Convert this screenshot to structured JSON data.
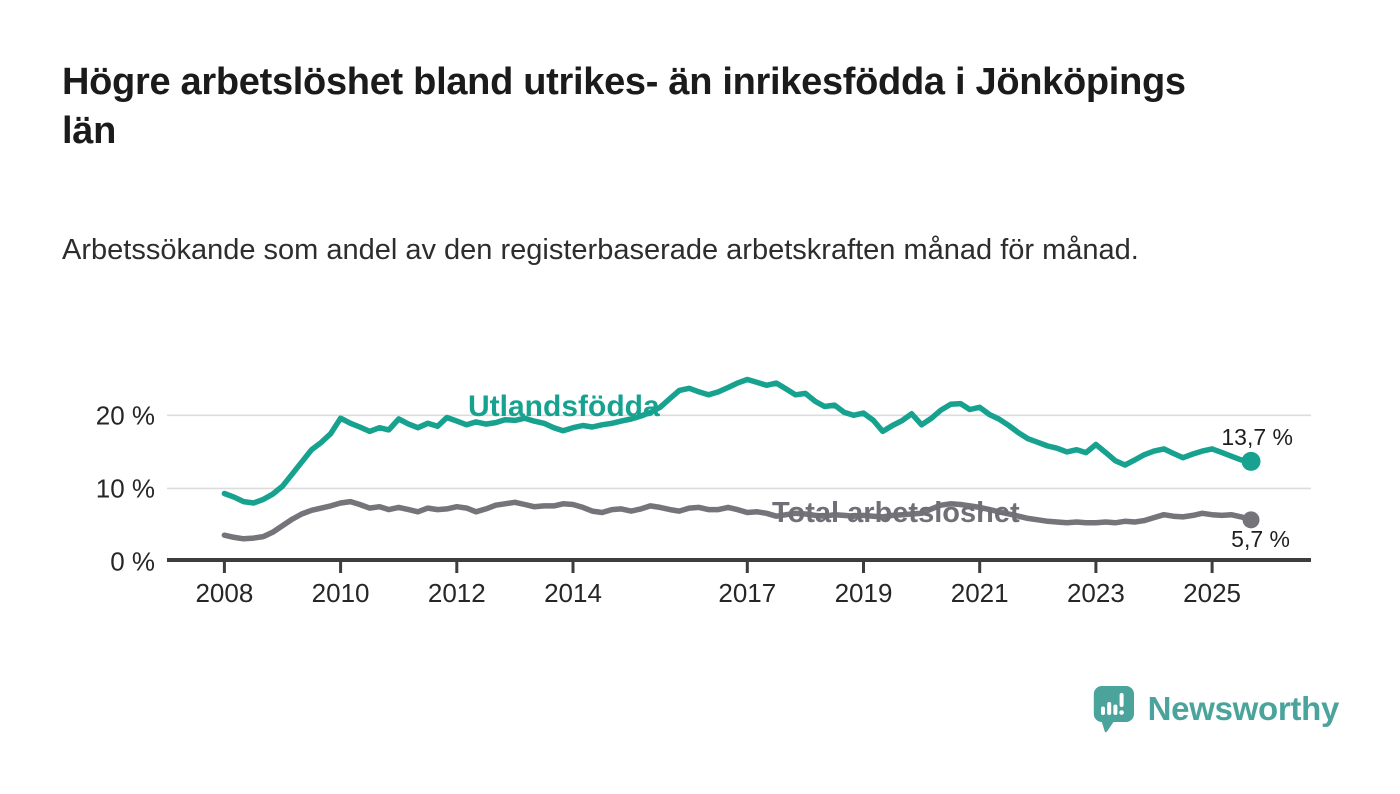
{
  "chart_data": {
    "type": "line",
    "title": "Högre arbetslöshet bland utrikes- än inrikesfödda i Jönköpings län",
    "subtitle": "Arbetssökande som andel av den registerbaserade arbetskraften månad för månad.",
    "unit": "%",
    "grid": "horizontal-only",
    "legend_position": "inline-labels-on-lines",
    "x_axis": {
      "min": 2008,
      "max": 2025.75,
      "ticks": [
        {
          "year": 2008,
          "label": "2008"
        },
        {
          "year": 2010,
          "label": "2010"
        },
        {
          "year": 2012,
          "label": "2012"
        },
        {
          "year": 2014,
          "label": "2014"
        },
        {
          "year": 2017,
          "label": "2017"
        },
        {
          "year": 2019,
          "label": "2019"
        },
        {
          "year": 2021,
          "label": "2021"
        },
        {
          "year": 2023,
          "label": "2023"
        },
        {
          "year": 2025,
          "label": "2025"
        }
      ]
    },
    "y_axis": {
      "min": 0,
      "max": 25,
      "ticks": [
        {
          "value": 0,
          "label": "0 %"
        },
        {
          "value": 10,
          "label": "10 %"
        },
        {
          "value": 20,
          "label": "20 %"
        }
      ],
      "gridlines": [
        10,
        20
      ]
    },
    "series": [
      {
        "name": "Utlandsfödda",
        "color": "#17a28f",
        "end_value": 13.7,
        "end_value_label": "13,7 %",
        "points": [
          [
            2008.0,
            9.3
          ],
          [
            2008.17,
            8.8
          ],
          [
            2008.33,
            8.2
          ],
          [
            2008.5,
            8.0
          ],
          [
            2008.67,
            8.5
          ],
          [
            2008.83,
            9.2
          ],
          [
            2009.0,
            10.3
          ],
          [
            2009.17,
            12.0
          ],
          [
            2009.33,
            13.6
          ],
          [
            2009.5,
            15.3
          ],
          [
            2009.67,
            16.3
          ],
          [
            2009.83,
            17.5
          ],
          [
            2010.0,
            19.6
          ],
          [
            2010.17,
            18.9
          ],
          [
            2010.33,
            18.4
          ],
          [
            2010.5,
            17.8
          ],
          [
            2010.67,
            18.3
          ],
          [
            2010.83,
            18.0
          ],
          [
            2011.0,
            19.5
          ],
          [
            2011.17,
            18.8
          ],
          [
            2011.33,
            18.3
          ],
          [
            2011.5,
            18.9
          ],
          [
            2011.67,
            18.5
          ],
          [
            2011.83,
            19.7
          ],
          [
            2012.0,
            19.2
          ],
          [
            2012.17,
            18.7
          ],
          [
            2012.33,
            19.1
          ],
          [
            2012.5,
            18.8
          ],
          [
            2012.67,
            19.0
          ],
          [
            2012.83,
            19.4
          ],
          [
            2013.0,
            19.3
          ],
          [
            2013.17,
            19.6
          ],
          [
            2013.33,
            19.2
          ],
          [
            2013.5,
            18.9
          ],
          [
            2013.67,
            18.3
          ],
          [
            2013.83,
            17.9
          ],
          [
            2014.0,
            18.3
          ],
          [
            2014.17,
            18.6
          ],
          [
            2014.33,
            18.4
          ],
          [
            2014.5,
            18.7
          ],
          [
            2014.67,
            18.9
          ],
          [
            2014.83,
            19.2
          ],
          [
            2015.0,
            19.5
          ],
          [
            2015.17,
            19.9
          ],
          [
            2015.33,
            20.4
          ],
          [
            2015.5,
            21.1
          ],
          [
            2015.67,
            22.3
          ],
          [
            2015.83,
            23.4
          ],
          [
            2016.0,
            23.7
          ],
          [
            2016.17,
            23.2
          ],
          [
            2016.33,
            22.8
          ],
          [
            2016.5,
            23.2
          ],
          [
            2016.67,
            23.8
          ],
          [
            2016.83,
            24.4
          ],
          [
            2017.0,
            24.9
          ],
          [
            2017.17,
            24.5
          ],
          [
            2017.33,
            24.1
          ],
          [
            2017.5,
            24.4
          ],
          [
            2017.67,
            23.6
          ],
          [
            2017.83,
            22.8
          ],
          [
            2018.0,
            23.0
          ],
          [
            2018.17,
            21.9
          ],
          [
            2018.33,
            21.2
          ],
          [
            2018.5,
            21.4
          ],
          [
            2018.67,
            20.4
          ],
          [
            2018.83,
            20.0
          ],
          [
            2019.0,
            20.3
          ],
          [
            2019.17,
            19.3
          ],
          [
            2019.33,
            17.8
          ],
          [
            2019.5,
            18.6
          ],
          [
            2019.67,
            19.3
          ],
          [
            2019.83,
            20.2
          ],
          [
            2020.0,
            18.7
          ],
          [
            2020.17,
            19.6
          ],
          [
            2020.33,
            20.7
          ],
          [
            2020.5,
            21.5
          ],
          [
            2020.67,
            21.6
          ],
          [
            2020.83,
            20.8
          ],
          [
            2021.0,
            21.1
          ],
          [
            2021.17,
            20.1
          ],
          [
            2021.33,
            19.5
          ],
          [
            2021.5,
            18.6
          ],
          [
            2021.67,
            17.6
          ],
          [
            2021.83,
            16.8
          ],
          [
            2022.0,
            16.3
          ],
          [
            2022.17,
            15.8
          ],
          [
            2022.33,
            15.5
          ],
          [
            2022.5,
            15.0
          ],
          [
            2022.67,
            15.3
          ],
          [
            2022.83,
            14.9
          ],
          [
            2023.0,
            16.0
          ],
          [
            2023.17,
            14.9
          ],
          [
            2023.33,
            13.8
          ],
          [
            2023.5,
            13.2
          ],
          [
            2023.67,
            13.9
          ],
          [
            2023.83,
            14.6
          ],
          [
            2024.0,
            15.1
          ],
          [
            2024.17,
            15.4
          ],
          [
            2024.33,
            14.8
          ],
          [
            2024.5,
            14.2
          ],
          [
            2024.67,
            14.7
          ],
          [
            2024.83,
            15.1
          ],
          [
            2025.0,
            15.4
          ],
          [
            2025.17,
            14.9
          ],
          [
            2025.33,
            14.4
          ],
          [
            2025.5,
            13.9
          ],
          [
            2025.67,
            13.7
          ]
        ]
      },
      {
        "name": "Total arbetslöshet",
        "color": "#74747a",
        "end_value": 5.7,
        "end_value_label": "5,7 %",
        "points": [
          [
            2008.0,
            3.6
          ],
          [
            2008.17,
            3.3
          ],
          [
            2008.33,
            3.1
          ],
          [
            2008.5,
            3.2
          ],
          [
            2008.67,
            3.4
          ],
          [
            2008.83,
            4.0
          ],
          [
            2009.0,
            4.9
          ],
          [
            2009.17,
            5.8
          ],
          [
            2009.33,
            6.5
          ],
          [
            2009.5,
            7.0
          ],
          [
            2009.67,
            7.3
          ],
          [
            2009.83,
            7.6
          ],
          [
            2010.0,
            8.0
          ],
          [
            2010.17,
            8.2
          ],
          [
            2010.33,
            7.8
          ],
          [
            2010.5,
            7.3
          ],
          [
            2010.67,
            7.5
          ],
          [
            2010.83,
            7.1
          ],
          [
            2011.0,
            7.4
          ],
          [
            2011.17,
            7.1
          ],
          [
            2011.33,
            6.8
          ],
          [
            2011.5,
            7.3
          ],
          [
            2011.67,
            7.1
          ],
          [
            2011.83,
            7.2
          ],
          [
            2012.0,
            7.5
          ],
          [
            2012.17,
            7.3
          ],
          [
            2012.33,
            6.8
          ],
          [
            2012.5,
            7.2
          ],
          [
            2012.67,
            7.7
          ],
          [
            2012.83,
            7.9
          ],
          [
            2013.0,
            8.1
          ],
          [
            2013.17,
            7.8
          ],
          [
            2013.33,
            7.5
          ],
          [
            2013.5,
            7.6
          ],
          [
            2013.67,
            7.6
          ],
          [
            2013.83,
            7.9
          ],
          [
            2014.0,
            7.8
          ],
          [
            2014.17,
            7.4
          ],
          [
            2014.33,
            6.9
          ],
          [
            2014.5,
            6.7
          ],
          [
            2014.67,
            7.1
          ],
          [
            2014.83,
            7.2
          ],
          [
            2015.0,
            6.9
          ],
          [
            2015.17,
            7.2
          ],
          [
            2015.33,
            7.6
          ],
          [
            2015.5,
            7.4
          ],
          [
            2015.67,
            7.1
          ],
          [
            2015.83,
            6.9
          ],
          [
            2016.0,
            7.3
          ],
          [
            2016.17,
            7.4
          ],
          [
            2016.33,
            7.1
          ],
          [
            2016.5,
            7.1
          ],
          [
            2016.67,
            7.4
          ],
          [
            2016.83,
            7.1
          ],
          [
            2017.0,
            6.7
          ],
          [
            2017.17,
            6.8
          ],
          [
            2017.33,
            6.6
          ],
          [
            2017.5,
            6.2
          ],
          [
            2017.67,
            6.4
          ],
          [
            2017.83,
            6.6
          ],
          [
            2018.0,
            6.5
          ],
          [
            2018.17,
            6.3
          ],
          [
            2018.33,
            6.2
          ],
          [
            2018.5,
            6.4
          ],
          [
            2018.67,
            6.3
          ],
          [
            2018.83,
            6.2
          ],
          [
            2019.0,
            6.3
          ],
          [
            2019.17,
            6.2
          ],
          [
            2019.33,
            6.1
          ],
          [
            2019.5,
            6.3
          ],
          [
            2019.67,
            6.4
          ],
          [
            2019.83,
            6.5
          ],
          [
            2020.0,
            6.6
          ],
          [
            2020.17,
            7.2
          ],
          [
            2020.33,
            7.7
          ],
          [
            2020.5,
            7.9
          ],
          [
            2020.67,
            7.8
          ],
          [
            2020.83,
            7.6
          ],
          [
            2021.0,
            7.4
          ],
          [
            2021.17,
            7.1
          ],
          [
            2021.33,
            6.8
          ],
          [
            2021.5,
            6.5
          ],
          [
            2021.67,
            6.2
          ],
          [
            2021.83,
            5.9
          ],
          [
            2022.0,
            5.7
          ],
          [
            2022.17,
            5.5
          ],
          [
            2022.33,
            5.4
          ],
          [
            2022.5,
            5.3
          ],
          [
            2022.67,
            5.4
          ],
          [
            2022.83,
            5.3
          ],
          [
            2023.0,
            5.3
          ],
          [
            2023.17,
            5.4
          ],
          [
            2023.33,
            5.3
          ],
          [
            2023.5,
            5.5
          ],
          [
            2023.67,
            5.4
          ],
          [
            2023.83,
            5.6
          ],
          [
            2024.0,
            6.0
          ],
          [
            2024.17,
            6.4
          ],
          [
            2024.33,
            6.2
          ],
          [
            2024.5,
            6.1
          ],
          [
            2024.67,
            6.3
          ],
          [
            2024.83,
            6.6
          ],
          [
            2025.0,
            6.4
          ],
          [
            2025.17,
            6.3
          ],
          [
            2025.33,
            6.4
          ],
          [
            2025.5,
            6.1
          ],
          [
            2025.67,
            5.7
          ]
        ]
      }
    ],
    "style": {
      "grid_color": "#dcdcdc",
      "axis_color": "#3d3d3d",
      "tick_text_color": "#262626"
    }
  },
  "footer": {
    "brand": "Newsworthy",
    "logo_color": "#4ba49b"
  }
}
